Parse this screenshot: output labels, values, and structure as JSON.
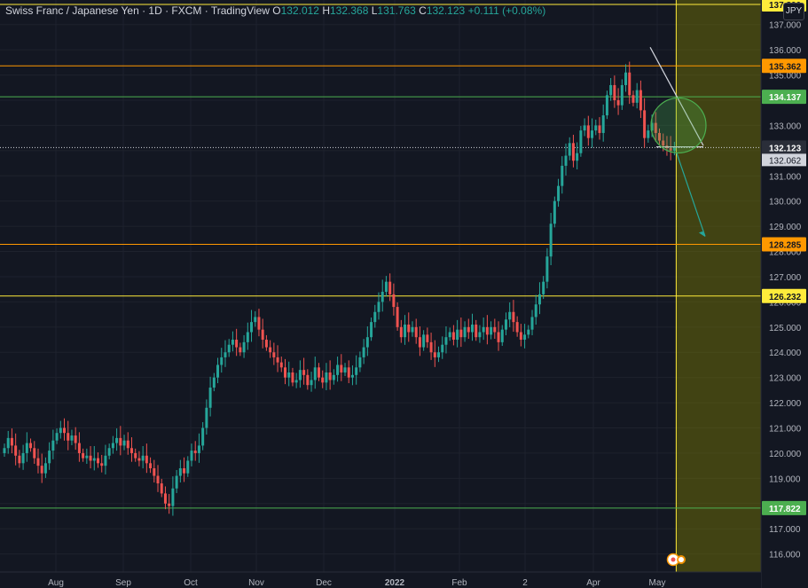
{
  "header": {
    "symbol": "Swiss Franc / Japanese Yen · 1D · FXCM · TradingView",
    "ohlc": {
      "open_label": "O",
      "open": "132.012",
      "high_label": "H",
      "high": "132.368",
      "low_label": "L",
      "low": "131.763",
      "close_label": "C",
      "close": "132.123",
      "change": "+0.111",
      "change_pct": "(+0.08%)"
    }
  },
  "currency_badge": "JPY",
  "colors": {
    "background": "#131722",
    "up": "#26a69a",
    "down": "#ef5350",
    "grid": "#1e222d",
    "axis_text": "#b2b5be",
    "yellow": "#ffeb3b",
    "orange": "#ff9800",
    "green_line": "#4caf50",
    "shade": "#808000"
  },
  "chart_data": {
    "type": "candlestick",
    "y_range": [
      115.6,
      137.8
    ],
    "y_ticks": [
      116,
      117,
      118,
      119,
      120,
      121,
      122,
      123,
      124,
      125,
      126,
      127,
      128,
      129,
      130,
      131,
      132,
      133,
      134,
      135,
      136,
      137
    ],
    "x_labels": [
      "Aug",
      "Sep",
      "Oct",
      "Nov",
      "Dec",
      "2022",
      "Feb",
      "2",
      "Apr",
      "May"
    ],
    "horizontal_lines": [
      {
        "price": 137.8,
        "label": "137.800",
        "color": "yellow"
      },
      {
        "price": 135.362,
        "label": "135.362",
        "color": "orange"
      },
      {
        "price": 134.137,
        "label": "134.137",
        "color": "green"
      },
      {
        "price": 132.123,
        "label": "132.123",
        "color": "white"
      },
      {
        "price": 128.285,
        "label": "128.285",
        "color": "orange"
      },
      {
        "price": 126.232,
        "label": "126.232",
        "color": "yellow"
      },
      {
        "price": 117.822,
        "label": "117.822",
        "color": "green"
      }
    ],
    "current_price_label": "132.123",
    "secondary_price_label": "132.062",
    "closes": [
      120.2,
      120.6,
      120.3,
      119.9,
      119.6,
      120.0,
      120.4,
      120.2,
      119.8,
      119.5,
      119.2,
      119.6,
      120.1,
      120.5,
      120.8,
      121.0,
      120.8,
      120.5,
      120.7,
      120.4,
      120.0,
      119.8,
      119.9,
      119.7,
      119.8,
      119.6,
      119.5,
      119.9,
      120.2,
      120.4,
      120.6,
      120.3,
      120.5,
      120.2,
      120.0,
      119.8,
      119.7,
      119.9,
      119.6,
      119.4,
      119.1,
      118.8,
      118.4,
      118.0,
      117.9,
      118.6,
      119.1,
      119.4,
      119.2,
      119.7,
      120.1,
      120.0,
      120.3,
      121.0,
      121.8,
      122.6,
      123.0,
      123.5,
      123.8,
      124.0,
      124.3,
      124.5,
      124.2,
      124.0,
      124.4,
      124.8,
      125.2,
      125.4,
      124.9,
      124.5,
      124.2,
      124.0,
      123.8,
      123.6,
      123.4,
      123.0,
      123.2,
      122.8,
      122.9,
      123.3,
      123.1,
      122.7,
      122.9,
      123.4,
      123.0,
      122.8,
      123.2,
      122.9,
      123.1,
      123.5,
      123.2,
      123.4,
      123.0,
      123.1,
      123.4,
      123.8,
      124.2,
      124.6,
      125.2,
      125.6,
      126.0,
      126.4,
      126.8,
      126.3,
      125.8,
      125.0,
      124.6,
      125.1,
      124.8,
      125.0,
      124.6,
      124.2,
      124.7,
      124.4,
      124.0,
      123.8,
      124.0,
      124.3,
      124.6,
      124.8,
      124.5,
      124.9,
      124.6,
      125.0,
      124.8,
      125.1,
      124.6,
      124.8,
      125.0,
      124.7,
      125.0,
      124.8,
      124.4,
      124.9,
      125.3,
      125.6,
      125.2,
      124.8,
      124.5,
      124.7,
      124.9,
      125.4,
      125.9,
      126.3,
      126.8,
      127.8,
      129.1,
      130.0,
      130.6,
      131.4,
      131.8,
      132.3,
      131.6,
      131.9,
      132.8,
      133.0,
      132.5,
      132.8,
      133.0,
      132.7,
      133.4,
      134.2,
      134.6,
      134.0,
      133.8,
      134.6,
      135.1,
      134.2,
      133.9,
      134.4,
      133.6,
      132.5,
      132.8,
      133.1,
      132.7,
      132.4,
      132.2,
      132.1,
      132.0,
      132.12
    ]
  },
  "drawings": {
    "trend_line": {
      "from": [
        173,
        136.1
      ],
      "to": [
        180,
        132.1
      ]
    },
    "arrow": {
      "from": [
        180,
        131.9
      ],
      "to": [
        187,
        128.5
      ]
    },
    "circle": {
      "center": [
        180,
        133.0
      ],
      "radius_price": 1.1
    },
    "shaded_region": {
      "from_index": 180,
      "y_from": 137.8,
      "y_to": 115.6
    }
  }
}
